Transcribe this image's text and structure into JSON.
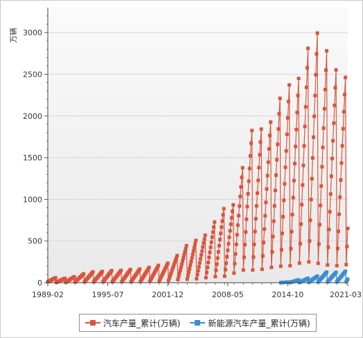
{
  "chart_data": {
    "type": "line",
    "ylabel": "万辆",
    "ylim": [
      0,
      3300
    ],
    "y_ticks": [
      "0",
      "500",
      "1000",
      "1500",
      "2000",
      "2500",
      "3000"
    ],
    "x_ticks": [
      "1989-02",
      "1995-07",
      "2001-12",
      "2008-05",
      "2014-10",
      "2021-03"
    ],
    "x_start": "1989-02",
    "x_end": "2021-03",
    "grid": true,
    "legend_position": "bottom",
    "series": [
      {
        "name": "汽车产量_累计(万辆)",
        "color": "#d9553c",
        "annual_totals": [
          {
            "year": 1989,
            "total": 59
          },
          {
            "year": 1990,
            "total": 51
          },
          {
            "year": 1991,
            "total": 71
          },
          {
            "year": 1992,
            "total": 106
          },
          {
            "year": 1993,
            "total": 130
          },
          {
            "year": 1994,
            "total": 135
          },
          {
            "year": 1995,
            "total": 145
          },
          {
            "year": 1996,
            "total": 147
          },
          {
            "year": 1997,
            "total": 158
          },
          {
            "year": 1998,
            "total": 163
          },
          {
            "year": 1999,
            "total": 183
          },
          {
            "year": 2000,
            "total": 207
          },
          {
            "year": 2001,
            "total": 234
          },
          {
            "year": 2002,
            "total": 325
          },
          {
            "year": 2003,
            "total": 444
          },
          {
            "year": 2004,
            "total": 507
          },
          {
            "year": 2005,
            "total": 570
          },
          {
            "year": 2006,
            "total": 728
          },
          {
            "year": 2007,
            "total": 888
          },
          {
            "year": 2008,
            "total": 934
          },
          {
            "year": 2009,
            "total": 1379
          },
          {
            "year": 2010,
            "total": 1826
          },
          {
            "year": 2011,
            "total": 1842
          },
          {
            "year": 2012,
            "total": 1927
          },
          {
            "year": 2013,
            "total": 2212
          },
          {
            "year": 2014,
            "total": 2372
          },
          {
            "year": 2015,
            "total": 2450
          },
          {
            "year": 2016,
            "total": 2812
          },
          {
            "year": 2017,
            "total": 2994
          },
          {
            "year": 2018,
            "total": 2781
          },
          {
            "year": 2019,
            "total": 2553
          },
          {
            "year": 2020,
            "total": 2462
          },
          {
            "year": 2021,
            "total": 652
          }
        ]
      },
      {
        "name": "新能源汽车产量_累计(万辆)",
        "color": "#3a8fd0",
        "annual_totals": [
          {
            "year": 2014,
            "total": 8
          },
          {
            "year": 2015,
            "total": 34
          },
          {
            "year": 2016,
            "total": 52
          },
          {
            "year": 2017,
            "total": 79
          },
          {
            "year": 2018,
            "total": 127
          },
          {
            "year": 2019,
            "total": 124
          },
          {
            "year": 2020,
            "total": 137
          },
          {
            "year": 2021,
            "total": 42
          }
        ]
      }
    ]
  }
}
